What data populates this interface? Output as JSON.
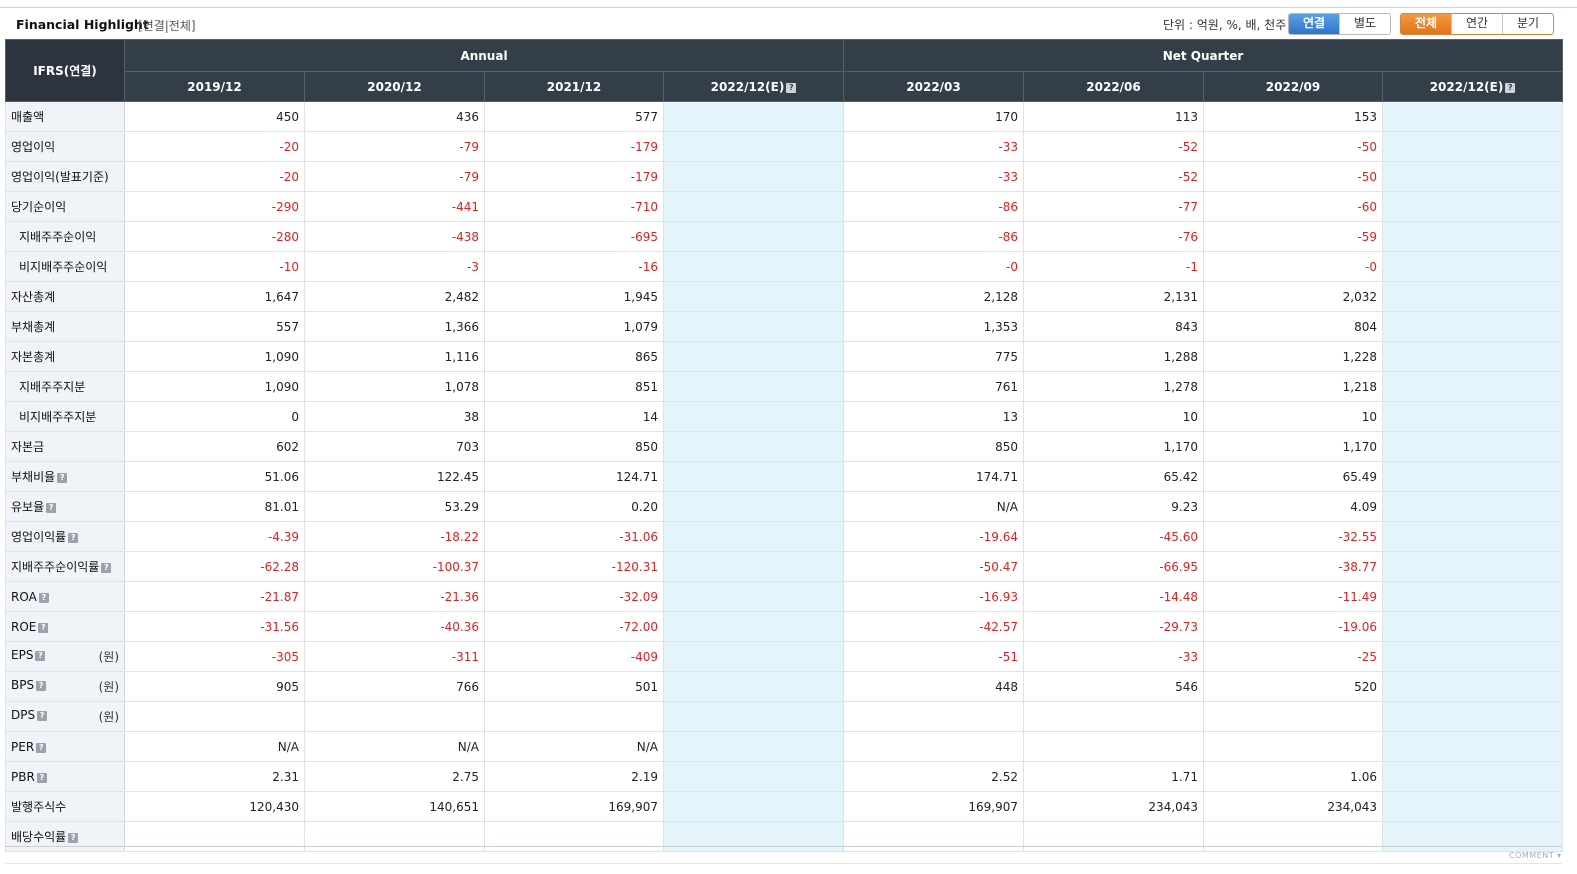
{
  "header": {
    "title": "Financial Highlight",
    "subtitle": "[연결|전체]",
    "unit_label": "단위 : 억원, %, 배, 천주",
    "scope_buttons": [
      {
        "label": "연결",
        "active": true
      },
      {
        "label": "별도",
        "active": false
      }
    ],
    "period_buttons": [
      {
        "label": "전체",
        "active": true
      },
      {
        "label": "연간",
        "active": false
      },
      {
        "label": "분기",
        "active": false
      }
    ]
  },
  "table": {
    "corner_label": "IFRS(연결)",
    "group_headers": [
      "Annual",
      "Net Quarter"
    ],
    "columns": [
      "2019/12",
      "2020/12",
      "2021/12",
      "2022/12(E)",
      "2022/03",
      "2022/06",
      "2022/09",
      "2022/12(E)"
    ],
    "rows": [
      {
        "label": "매출액",
        "values": [
          "450",
          "436",
          "577",
          "",
          "170",
          "113",
          "153",
          ""
        ]
      },
      {
        "label": "영업이익",
        "values": [
          "-20",
          "-79",
          "-179",
          "",
          "-33",
          "-52",
          "-50",
          ""
        ]
      },
      {
        "label": "영업이익(발표기준)",
        "values": [
          "-20",
          "-79",
          "-179",
          "",
          "-33",
          "-52",
          "-50",
          ""
        ]
      },
      {
        "label": "당기순이익",
        "values": [
          "-290",
          "-441",
          "-710",
          "",
          "-86",
          "-77",
          "-60",
          ""
        ]
      },
      {
        "label": "지배주주순이익",
        "values": [
          "-280",
          "-438",
          "-695",
          "",
          "-86",
          "-76",
          "-59",
          ""
        ]
      },
      {
        "label": "비지배주주순이익",
        "values": [
          "-10",
          "-3",
          "-16",
          "",
          "-0",
          "-1",
          "-0",
          ""
        ]
      },
      {
        "label": "자산총계",
        "values": [
          "1,647",
          "2,482",
          "1,945",
          "",
          "2,128",
          "2,131",
          "2,032",
          ""
        ]
      },
      {
        "label": "부채총계",
        "values": [
          "557",
          "1,366",
          "1,079",
          "",
          "1,353",
          "843",
          "804",
          ""
        ]
      },
      {
        "label": "자본총계",
        "values": [
          "1,090",
          "1,116",
          "865",
          "",
          "775",
          "1,288",
          "1,228",
          ""
        ]
      },
      {
        "label": "지배주주지분",
        "values": [
          "1,090",
          "1,078",
          "851",
          "",
          "761",
          "1,278",
          "1,218",
          ""
        ]
      },
      {
        "label": "비지배주주지분",
        "values": [
          "0",
          "38",
          "14",
          "",
          "13",
          "10",
          "10",
          ""
        ]
      },
      {
        "label": "자본금",
        "values": [
          "602",
          "703",
          "850",
          "",
          "850",
          "1,170",
          "1,170",
          ""
        ]
      },
      {
        "label": "부채비율",
        "values": [
          "51.06",
          "122.45",
          "124.71",
          "",
          "174.71",
          "65.42",
          "65.49",
          ""
        ]
      },
      {
        "label": "유보율",
        "values": [
          "81.01",
          "53.29",
          "0.20",
          "",
          "N/A",
          "9.23",
          "4.09",
          ""
        ]
      },
      {
        "label": "영업이익률",
        "values": [
          "-4.39",
          "-18.22",
          "-31.06",
          "",
          "-19.64",
          "-45.60",
          "-32.55",
          ""
        ]
      },
      {
        "label": "지배주주순이익률",
        "values": [
          "-62.28",
          "-100.37",
          "-120.31",
          "",
          "-50.47",
          "-66.95",
          "-38.77",
          ""
        ]
      },
      {
        "label": "ROA",
        "values": [
          "-21.87",
          "-21.36",
          "-32.09",
          "",
          "-16.93",
          "-14.48",
          "-11.49",
          ""
        ]
      },
      {
        "label": "ROE",
        "values": [
          "-31.56",
          "-40.36",
          "-72.00",
          "",
          "-42.57",
          "-29.73",
          "-19.06",
          ""
        ]
      },
      {
        "label": "EPS",
        "unit": "(원)",
        "values": [
          "-305",
          "-311",
          "-409",
          "",
          "-51",
          "-33",
          "-25",
          ""
        ]
      },
      {
        "label": "BPS",
        "unit": "(원)",
        "values": [
          "905",
          "766",
          "501",
          "",
          "448",
          "546",
          "520",
          ""
        ]
      },
      {
        "label": "DPS",
        "unit": "(원)",
        "values": [
          "",
          "",
          "",
          "",
          "",
          "",
          "",
          ""
        ]
      },
      {
        "label": "PER",
        "values": [
          "N/A",
          "N/A",
          "N/A",
          "",
          "",
          "",
          "",
          ""
        ]
      },
      {
        "label": "PBR",
        "values": [
          "2.31",
          "2.75",
          "2.19",
          "",
          "2.52",
          "1.71",
          "1.06",
          ""
        ]
      },
      {
        "label": "발행주식수",
        "values": [
          "120,430",
          "140,651",
          "169,907",
          "",
          "169,907",
          "234,043",
          "234,043",
          ""
        ]
      },
      {
        "label": "배당수익률",
        "values": [
          "",
          "",
          "",
          "",
          "",
          "",
          "",
          ""
        ]
      }
    ]
  },
  "footer": {
    "comment_label": "COMMENT"
  },
  "colors": {
    "header_bg": "#343e48",
    "estimate_bg": "#e3f4fa",
    "negative": "#e02020",
    "active_blue": "#2f74c9",
    "active_orange": "#e0731c"
  }
}
